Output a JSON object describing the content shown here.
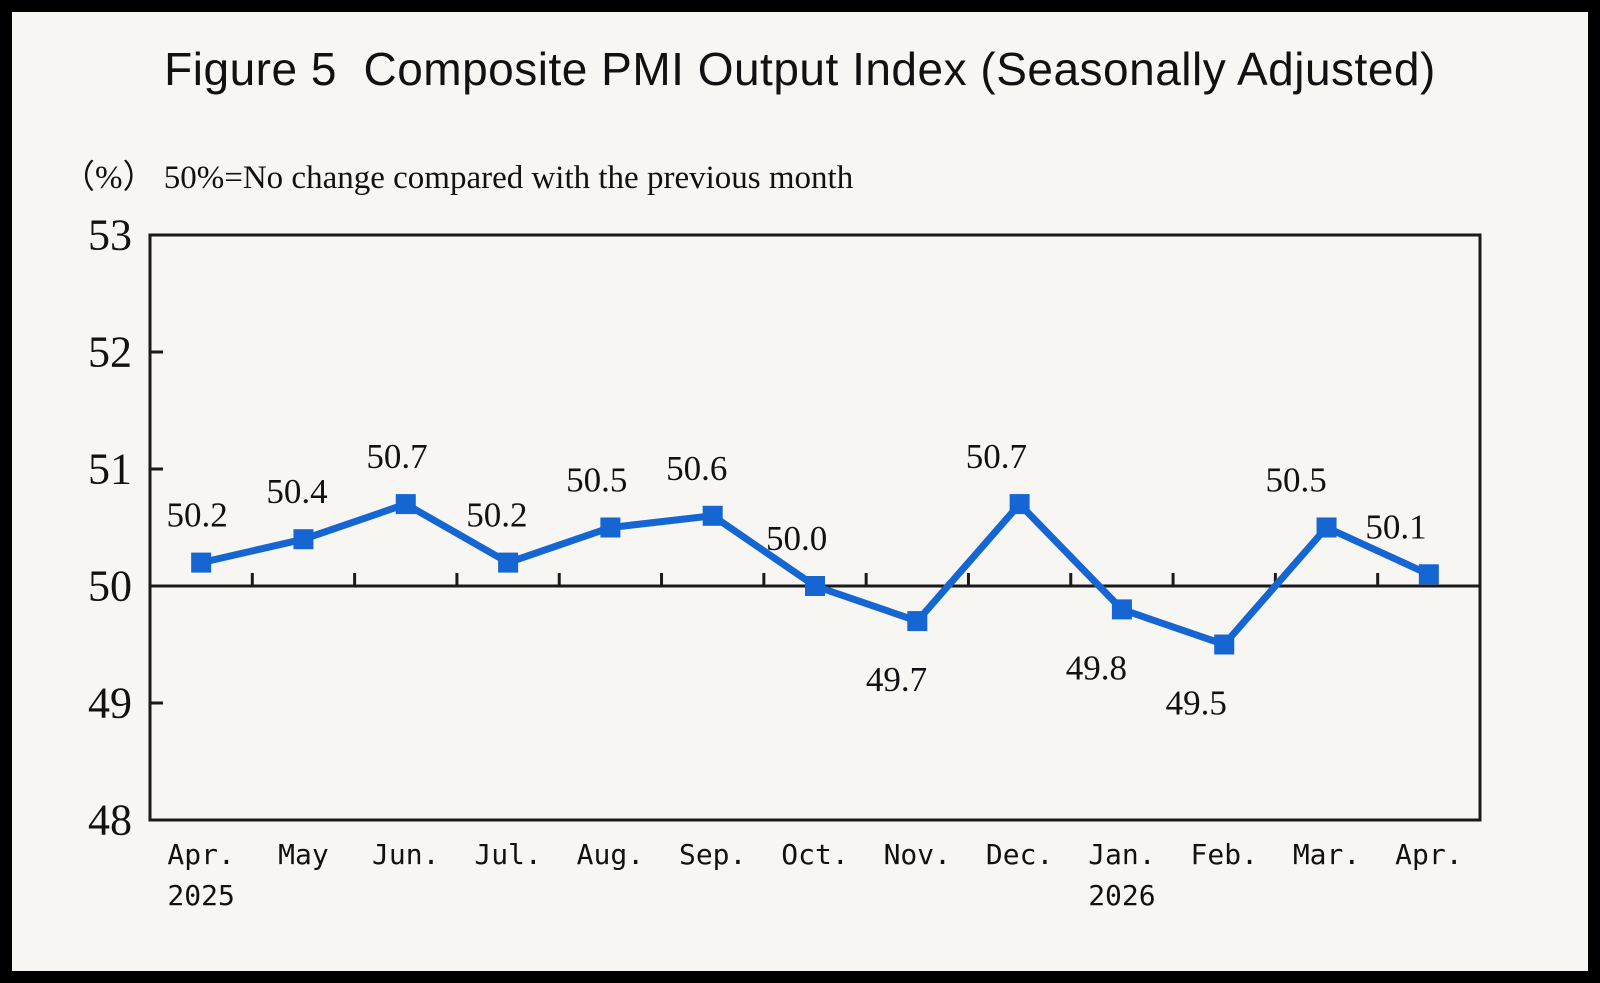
{
  "chart_data": {
    "type": "line",
    "title": "Figure 5  Composite PMI Output Index (Seasonally Adjusted)",
    "subtitle_unit": "（%）",
    "subtitle": "50%=No change compared with the previous month",
    "series": [
      {
        "name": "Composite PMI Output Index",
        "values": [
          50.2,
          50.4,
          50.7,
          50.2,
          50.5,
          50.6,
          50.0,
          49.7,
          50.7,
          49.8,
          49.5,
          50.5,
          50.1
        ]
      }
    ],
    "categories": [
      "Apr.",
      "May",
      "Jun.",
      "Jul.",
      "Aug.",
      "Sep.",
      "Oct.",
      "Nov.",
      "Dec.",
      "Jan.",
      "Feb.",
      "Mar.",
      "Apr."
    ],
    "category_years": [
      "2025",
      "",
      "",
      "",
      "",
      "",
      "",
      "",
      "",
      "2026",
      "",
      "",
      ""
    ],
    "ylim": [
      48,
      53
    ],
    "yticks": [
      48,
      49,
      50,
      51,
      52,
      53
    ],
    "reference_line_value": 50,
    "data_label_positions": [
      "above",
      "above",
      "above",
      "above",
      "above",
      "above",
      "above",
      "below",
      "above",
      "below",
      "below",
      "above",
      "above"
    ],
    "grid": "off",
    "legend": "none",
    "colors": {
      "line": "#1565d2",
      "marker": "#1565d2",
      "axis": "#1a1a1a",
      "text": "#111111",
      "background": "#f7f6f3",
      "frame": "#000000"
    }
  }
}
